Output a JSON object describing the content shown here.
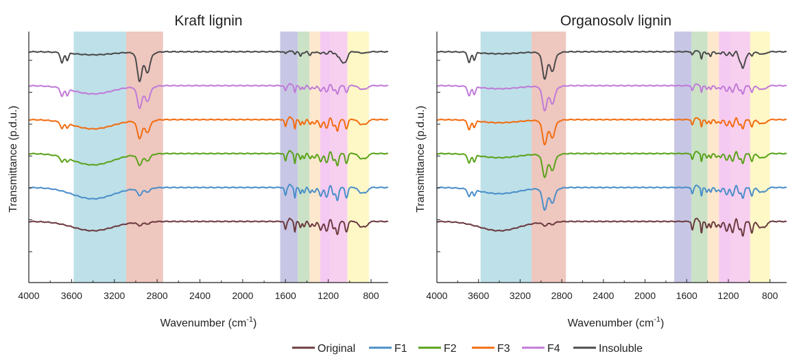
{
  "chart_data": [
    {
      "type": "line",
      "title": "Kraft lignin",
      "xlabel": "Wavenumber (cm",
      "xlabel_sup": "-1",
      "xlabel_close": ")",
      "ylabel": "Transmittance (p.d.u.)",
      "xlim": [
        4000,
        640
      ],
      "x_reversed": true,
      "x_ticks": [
        "4000",
        "3600",
        "3200",
        "2800",
        "2400",
        "2000",
        "1600",
        "1200",
        "800"
      ],
      "y_ticks": 7,
      "grid": false,
      "bands": [
        {
          "from": 3580,
          "to": 3090,
          "color": "#a8d5e0"
        },
        {
          "from": 3090,
          "to": 2745,
          "color": "#e8b4aa"
        },
        {
          "from": 1650,
          "to": 1485,
          "color": "#b4b4dc"
        },
        {
          "from": 1485,
          "to": 1375,
          "color": "#b9d8b4"
        },
        {
          "from": 1375,
          "to": 1275,
          "color": "#fde0bc"
        },
        {
          "from": 1275,
          "to": 1180,
          "color": "#f2b8ee"
        },
        {
          "from": 1180,
          "to": 1020,
          "color": "#f5c0ea"
        },
        {
          "from": 1020,
          "to": 820,
          "color": "#fdf6b4"
        }
      ],
      "series": [
        {
          "name": "Original",
          "color": "#6b3a3f",
          "offset": 1,
          "oh": [
            0,
            0
          ],
          "ch": [
            0.15,
            0.08
          ],
          "fp": 0.85,
          "ins": 0,
          "broad": 0.45
        },
        {
          "name": "F1",
          "color": "#4a8ec9",
          "offset": 2,
          "oh": [
            0,
            0
          ],
          "ch": [
            0.3,
            0.15
          ],
          "fp": 0.85,
          "ins": 0,
          "broad": 0.55
        },
        {
          "name": "F2",
          "color": "#5aa21a",
          "offset": 3,
          "oh": [
            0.25,
            0.15
          ],
          "ch": [
            0.45,
            0.25
          ],
          "fp": 0.8,
          "ins": 0,
          "broad": 0.55
        },
        {
          "name": "F3",
          "color": "#f26c10",
          "offset": 4,
          "oh": [
            0.3,
            0.2
          ],
          "ch": [
            0.75,
            0.45
          ],
          "fp": 0.75,
          "ins": 0,
          "broad": 0.45
        },
        {
          "name": "F4",
          "color": "#c07ad8",
          "offset": 5,
          "oh": [
            0.4,
            0.3
          ],
          "ch": [
            0.9,
            0.55
          ],
          "fp": 0.55,
          "ins": 0,
          "broad": 0.4
        },
        {
          "name": "Insoluble",
          "color": "#4a4a4a",
          "offset": 6,
          "oh": [
            0.5,
            0.35
          ],
          "ch": [
            1.2,
            0.75
          ],
          "fp": 0.2,
          "ins": 1,
          "broad": 0.15
        }
      ]
    },
    {
      "type": "line",
      "title": "Organosolv lignin",
      "xlabel": "Wavenumber (cm",
      "xlabel_sup": "-1",
      "xlabel_close": ")",
      "ylabel": "Transmittance (p.d.u.)",
      "xlim": [
        4000,
        640
      ],
      "x_reversed": true,
      "x_ticks": [
        "4000",
        "3600",
        "3200",
        "2800",
        "2400",
        "2000",
        "1600",
        "1200",
        "800"
      ],
      "y_ticks": 7,
      "grid": false,
      "bands": [
        {
          "from": 3580,
          "to": 3090,
          "color": "#a8d5e0"
        },
        {
          "from": 3090,
          "to": 2760,
          "color": "#e8b4aa"
        },
        {
          "from": 1720,
          "to": 1555,
          "color": "#b4b4dc"
        },
        {
          "from": 1555,
          "to": 1400,
          "color": "#b9d8b4"
        },
        {
          "from": 1400,
          "to": 1290,
          "color": "#fde0bc"
        },
        {
          "from": 1290,
          "to": 1175,
          "color": "#f2b8ee"
        },
        {
          "from": 1175,
          "to": 990,
          "color": "#f5c0ea"
        },
        {
          "from": 990,
          "to": 800,
          "color": "#fdf6b4"
        }
      ],
      "series": [
        {
          "name": "Original",
          "color": "#6b3a3f",
          "offset": 1,
          "oh": [
            0,
            0
          ],
          "ch": [
            0.15,
            0.1
          ],
          "fp": 0.95,
          "ins": 0,
          "broad": 0.45
        },
        {
          "name": "F1",
          "color": "#4a8ec9",
          "offset": 2,
          "oh": [
            0.35,
            0.25
          ],
          "ch": [
            0.9,
            0.55
          ],
          "fp": 0.7,
          "ins": 0,
          "broad": 0.3
        },
        {
          "name": "F2",
          "color": "#5aa21a",
          "offset": 3,
          "oh": [
            0.4,
            0.3
          ],
          "ch": [
            0.95,
            0.6
          ],
          "fp": 0.65,
          "ins": 0,
          "broad": 0.2
        },
        {
          "name": "F3",
          "color": "#f26c10",
          "offset": 4,
          "oh": [
            0.45,
            0.3
          ],
          "ch": [
            1.0,
            0.65
          ],
          "fp": 0.6,
          "ins": 0,
          "broad": 0.15
        },
        {
          "name": "F4",
          "color": "#c07ad8",
          "offset": 5,
          "oh": [
            0.45,
            0.35
          ],
          "ch": [
            1.0,
            0.65
          ],
          "fp": 0.55,
          "ins": 0,
          "broad": 0.15
        },
        {
          "name": "Insoluble",
          "color": "#4a4a4a",
          "offset": 6,
          "oh": [
            0.5,
            0.35
          ],
          "ch": [
            1.1,
            0.7
          ],
          "fp": 0.35,
          "ins": 1,
          "broad": 0.1
        }
      ]
    }
  ],
  "legend": [
    {
      "name": "Original",
      "color": "#6b3a3f"
    },
    {
      "name": "F1",
      "color": "#4a8ec9"
    },
    {
      "name": "F2",
      "color": "#5aa21a"
    },
    {
      "name": "F3",
      "color": "#f26c10"
    },
    {
      "name": "F4",
      "color": "#c07ad8"
    },
    {
      "name": "Insoluble",
      "color": "#4a4a4a"
    }
  ]
}
